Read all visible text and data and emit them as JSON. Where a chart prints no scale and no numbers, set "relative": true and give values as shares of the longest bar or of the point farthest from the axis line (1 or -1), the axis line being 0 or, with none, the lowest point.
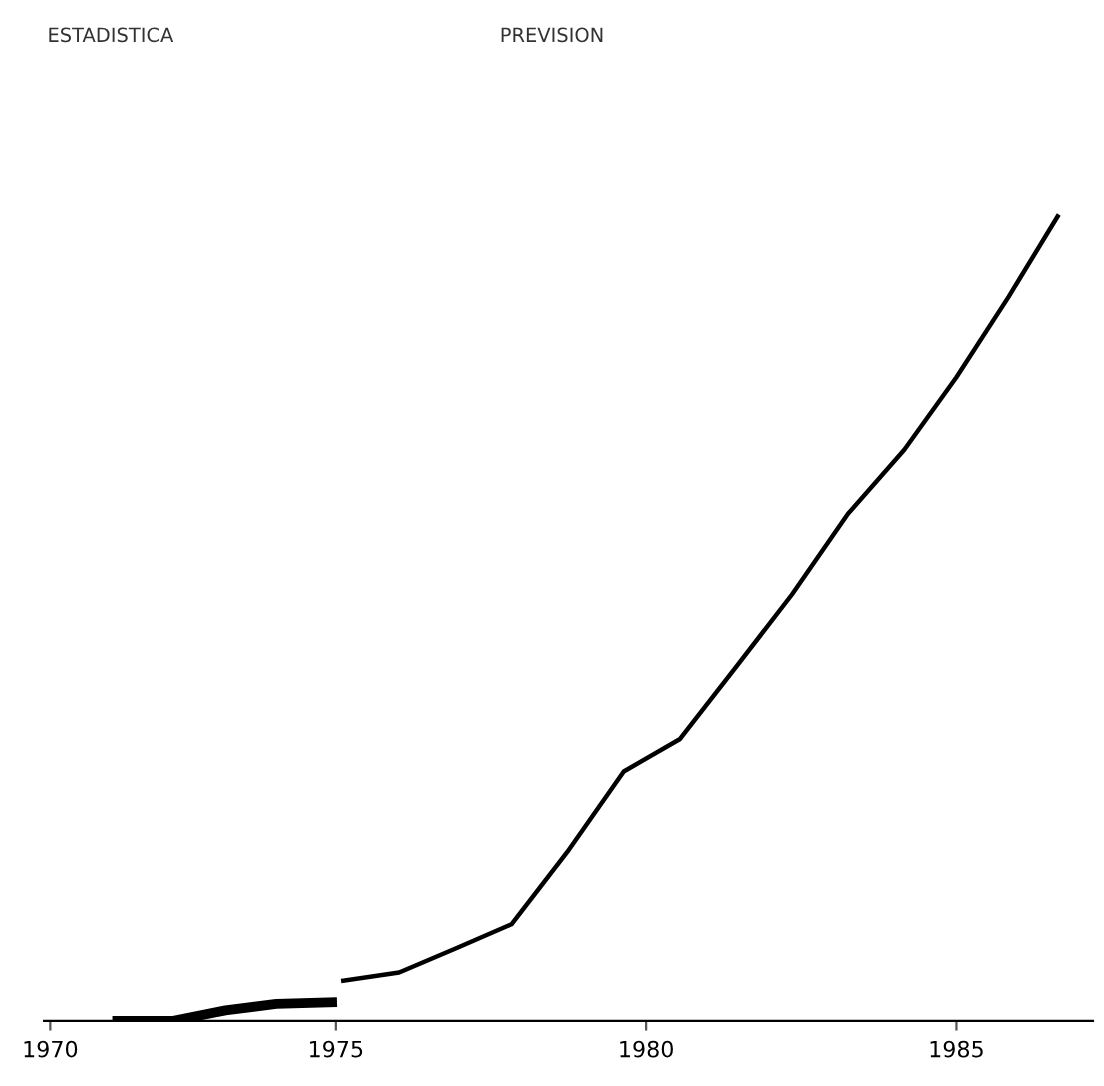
{
  "chart_data": {
    "type": "line",
    "relative": true,
    "annotations": [
      "ESTADISTICA",
      "PREVISION"
    ],
    "xlim": [
      1970.3,
      1987.2
    ],
    "xticks": [
      {
        "value": 1970.4,
        "label": "1970"
      },
      1975,
      1980,
      1985
    ],
    "series": [
      {
        "color": "#000000",
        "x": [
          1971.48,
          1972.38,
          1973.22,
          1974.04,
          1974.94
        ],
        "values": [
          0.0,
          0.0,
          0.013,
          0.021,
          0.023
        ]
      },
      {
        "color": "#000000",
        "x": [
          1975.12,
          1976.02,
          1976.93,
          1977.83,
          1978.73,
          1979.64,
          1980.54,
          1981.45,
          1982.35,
          1983.25,
          1984.16,
          1985.0,
          1985.84,
          1986.63
        ],
        "values": [
          0.05,
          0.06,
          0.09,
          0.12,
          0.21,
          0.31,
          0.35,
          0.44,
          0.53,
          0.63,
          0.71,
          0.8,
          0.9,
          1.0
        ]
      }
    ],
    "line_style": "solid",
    "marker": "none"
  }
}
